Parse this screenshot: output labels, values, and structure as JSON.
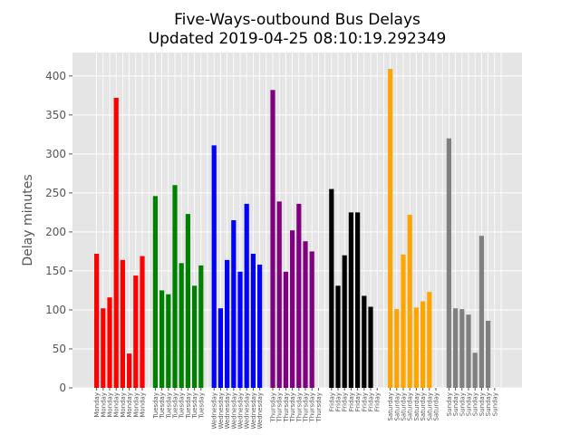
{
  "chart_data": {
    "type": "bar",
    "title": "Five-Ways-outbound Bus Delays",
    "subtitle": "Updated 2019-04-25 08:10:19.292349",
    "xlabel": "",
    "ylabel": "Delay minutes",
    "ylim": [
      0,
      430
    ],
    "yticks": [
      0,
      50,
      100,
      150,
      200,
      250,
      300,
      350,
      400
    ],
    "grid": true,
    "background": "#e5e5e5",
    "grid_color": "#ffffff",
    "groups": [
      {
        "day": "Monday",
        "color": "#ff0000",
        "values": [
          172,
          102,
          116,
          372,
          164,
          44,
          144,
          169
        ]
      },
      {
        "day": "Tuesday",
        "color": "#008000",
        "values": [
          246,
          125,
          120,
          260,
          160,
          223,
          131,
          157
        ]
      },
      {
        "day": "Wednesday",
        "color": "#0000ff",
        "values": [
          311,
          102,
          164,
          215,
          149,
          236,
          172,
          158
        ]
      },
      {
        "day": "Thursday",
        "color": "#800080",
        "values": [
          382,
          239,
          149,
          202,
          236,
          188,
          175
        ]
      },
      {
        "day": "Friday",
        "color": "#000000",
        "values": [
          255,
          131,
          170,
          225,
          225,
          118,
          104
        ]
      },
      {
        "day": "Saturday",
        "color": "#ffa500",
        "values": [
          409,
          101,
          171,
          222,
          103,
          111,
          123
        ]
      },
      {
        "day": "Sunday",
        "color": "#808080",
        "values": [
          320,
          102,
          101,
          94,
          45,
          195,
          86
        ]
      }
    ],
    "slots_per_group": 9,
    "x_labels_per_group": 8
  }
}
